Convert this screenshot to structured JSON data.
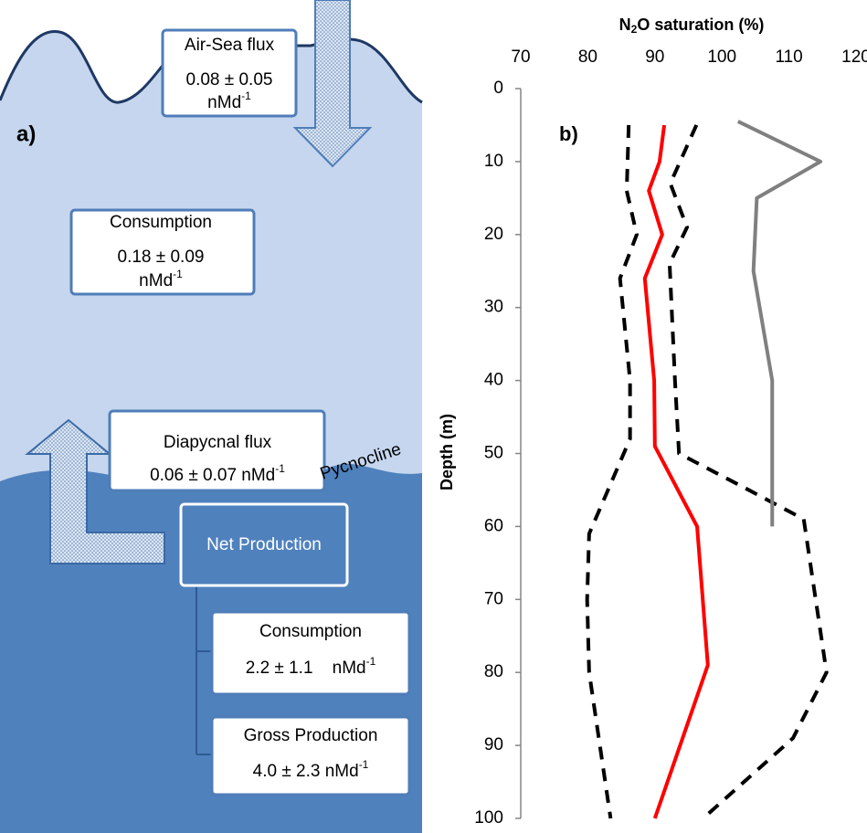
{
  "diagram": {
    "panel_label": "a)",
    "air_sea": {
      "title": "Air-Sea flux",
      "value": "0.08 ± 0.05",
      "unit": "nMd",
      "unit_exp": "-1"
    },
    "consumption_upper": {
      "title": "Consumption",
      "value": "0.18 ± 0.09",
      "unit": "nMd",
      "unit_exp": "-1"
    },
    "diapycnal": {
      "title": "Diapycnal flux",
      "value": "0.06 ± 0.07 nMd",
      "unit_exp": "-1"
    },
    "pycnocline": "Pycnocline",
    "net_production": "Net Production",
    "consumption_lower": {
      "title": "Consumption",
      "value": "2.2 ± 1.1    nMd",
      "unit_exp": "-1"
    },
    "gross_production": {
      "title": "Gross Production",
      "value": "4.0 ± 2.3 nMd",
      "unit_exp": "-1"
    }
  },
  "chart_data": {
    "type": "line",
    "title": "b)",
    "xlabel_parts": [
      "N",
      "2",
      "O saturation (%)"
    ],
    "ylabel": "Depth (m)",
    "xlim": [
      70,
      120
    ],
    "xticks": [
      70,
      80,
      90,
      100,
      110,
      120
    ],
    "ylim": [
      0,
      100
    ],
    "yticks": [
      0,
      10,
      20,
      30,
      40,
      50,
      60,
      70,
      80,
      90,
      100
    ],
    "y_inverted": true,
    "series": [
      {
        "color": "#ff0000",
        "dashed": false,
        "x": [
          91.4,
          90.7,
          89.1,
          91.1,
          88.5,
          89.9,
          90.0,
          96.3,
          97.9,
          90.0
        ],
        "y": [
          5,
          10,
          14,
          20,
          26,
          40,
          49,
          60,
          79,
          100
        ]
      },
      {
        "color": "#000000",
        "dashed": true,
        "x": [
          86.1,
          85.8,
          87.3,
          84.8,
          86.3,
          86.3,
          80.2,
          79.9,
          80.2,
          83.4
        ],
        "y": [
          5,
          14,
          20,
          26,
          40,
          48,
          61,
          70,
          80,
          100
        ]
      },
      {
        "color": "#000000",
        "dashed": true,
        "x": [
          96.2,
          92.3,
          94.8,
          92.2,
          93.0,
          93.6,
          104.0,
          112.2,
          115.6,
          110.6,
          97.2
        ],
        "y": [
          5,
          13,
          19,
          24,
          40,
          50,
          55,
          59,
          80,
          89,
          100
        ]
      },
      {
        "color": "#808080",
        "dashed": false,
        "x": [
          102.4,
          114.7,
          105.2,
          104.7,
          107.5,
          107.5
        ],
        "y": [
          4.5,
          10,
          15,
          25,
          40,
          60
        ]
      }
    ]
  }
}
